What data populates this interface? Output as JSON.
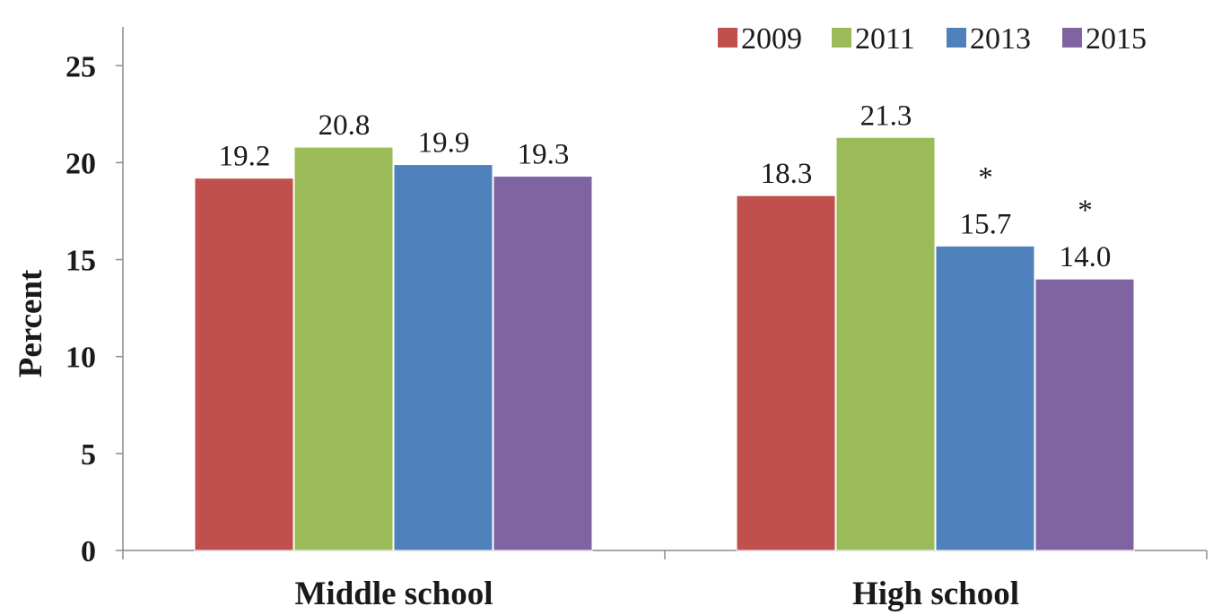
{
  "chart_data": {
    "type": "bar",
    "title": "",
    "xlabel": "",
    "ylabel": "Percent",
    "ylim": [
      0,
      27
    ],
    "yticks": [
      0,
      5,
      10,
      15,
      20,
      25
    ],
    "categories": [
      "Middle school",
      "High school"
    ],
    "series": [
      {
        "name": "2009",
        "color": "#c0504d",
        "values": [
          19.2,
          18.3
        ],
        "labels": [
          "19.2",
          "18.3"
        ],
        "markers": [
          "",
          ""
        ]
      },
      {
        "name": "2011",
        "color": "#9bbb59",
        "values": [
          20.8,
          21.3
        ],
        "labels": [
          "20.8",
          "21.3"
        ],
        "markers": [
          "",
          ""
        ]
      },
      {
        "name": "2013",
        "color": "#4f81bd",
        "values": [
          19.9,
          15.7
        ],
        "labels": [
          "19.9",
          "15.7"
        ],
        "markers": [
          "",
          "*"
        ]
      },
      {
        "name": "2015",
        "color": "#8064a2",
        "values": [
          19.3,
          14.0
        ],
        "labels": [
          "19.3",
          "14.0"
        ],
        "markers": [
          "",
          "*"
        ]
      }
    ],
    "legend_position": "top-right",
    "grid": false
  }
}
